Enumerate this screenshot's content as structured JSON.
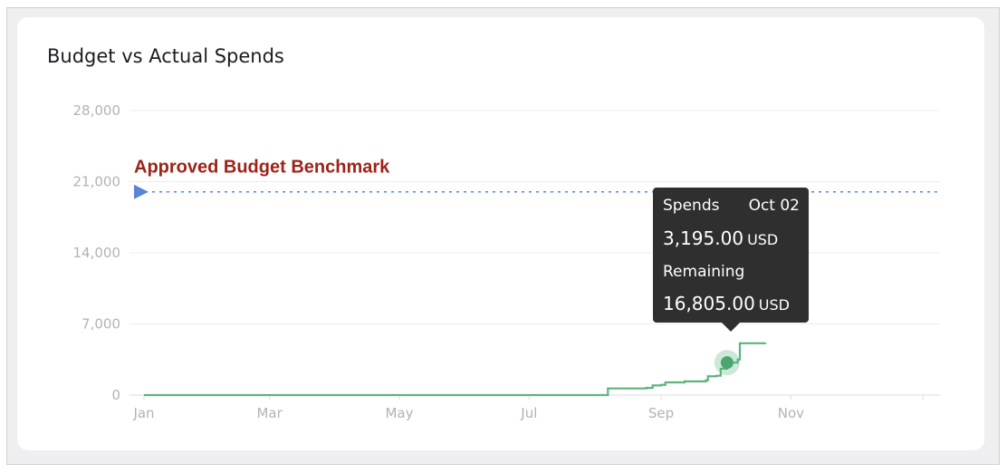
{
  "title": "Budget vs Actual Spends",
  "tooltip": {
    "spends_label": "Spends",
    "date": "Oct 02",
    "spends_value": "3,195.00",
    "unit": "USD",
    "remaining_label": "Remaining",
    "remaining_value": "16,805.00"
  },
  "chart_data": {
    "type": "line",
    "title": "Budget vs Actual Spends",
    "xlabel": "",
    "ylabel": "",
    "ylim": [
      0,
      28000
    ],
    "yticks": [
      0,
      7000,
      14000,
      21000,
      28000
    ],
    "ytick_labels": [
      "0",
      "7,000",
      "14,000",
      "21,000",
      "28,000"
    ],
    "xtick_labels": [
      "Jan",
      "Mar",
      "May",
      "Jul",
      "Sep",
      "Nov"
    ],
    "x_range": [
      "Jan 01",
      "Dec 31"
    ],
    "grid": true,
    "benchmark": {
      "label": "Approved Budget Benchmark",
      "value": 20000,
      "color": "#5b84d8",
      "label_color": "#9b2318"
    },
    "series": [
      {
        "color": "#5db37e",
        "x": [
          "Jan 01",
          "Aug 06",
          "Aug 07",
          "Aug 25",
          "Aug 28",
          "Sep 01",
          "Sep 03",
          "Sep 12",
          "Sep 22",
          "Sep 23",
          "Sep 27",
          "Sep 29",
          "Oct 02",
          "Oct 07",
          "Oct 08",
          "Oct 20"
        ],
        "y": [
          0,
          0,
          650,
          700,
          950,
          1000,
          1250,
          1350,
          1450,
          1850,
          1900,
          2600,
          3195,
          3500,
          5100,
          5150
        ]
      }
    ],
    "highlight": {
      "x": "Oct 02",
      "y": 3195
    }
  }
}
